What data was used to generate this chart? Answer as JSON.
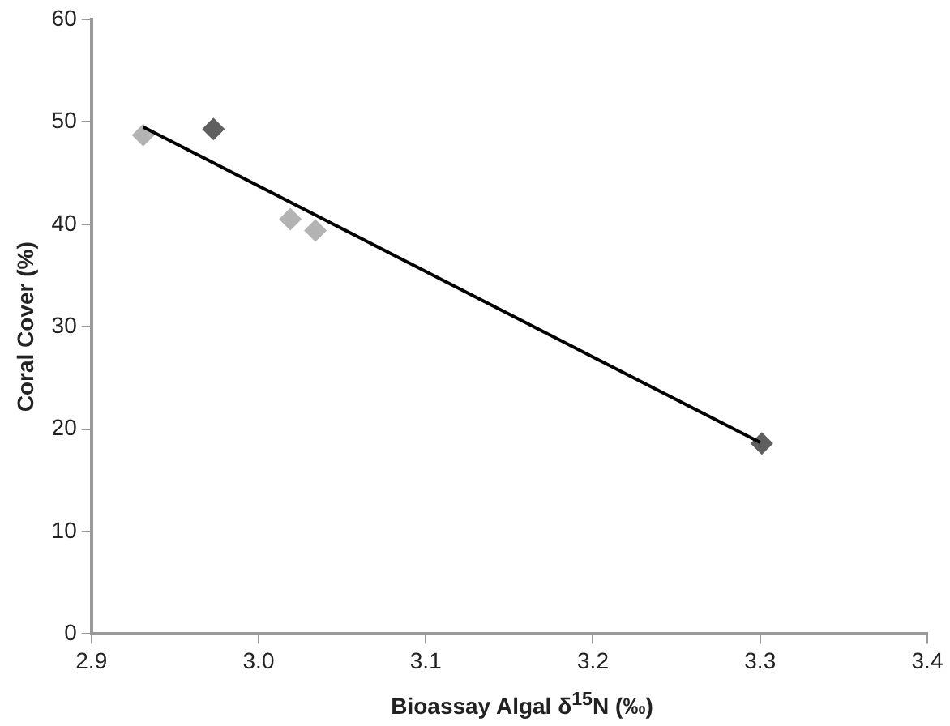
{
  "chart_data": {
    "type": "scatter",
    "xlabel": "Bioassay Algal δ$^{15}$N (‰)",
    "ylabel": "Coral Cover (%)",
    "xlim": [
      2.9,
      3.4
    ],
    "xticks": [
      {
        "value": 2.9,
        "label": "2.9"
      },
      {
        "value": 3.0,
        "label": "3.0"
      },
      3.1,
      3.2,
      3.3,
      3.4
    ],
    "ylim": [
      0,
      60
    ],
    "yticks": [
      0,
      10,
      20,
      30,
      40,
      50,
      60
    ],
    "marker": "diamond",
    "legend": false,
    "series": [
      {
        "color": "#b3b3b3",
        "x": [
          2.931,
          3.019,
          3.034
        ],
        "values": [
          48.7,
          40.5,
          39.4
        ]
      },
      {
        "color": "#5f5f5f",
        "x": [
          2.973,
          3.301
        ],
        "values": [
          49.3,
          18.6
        ]
      },
      {
        "type": "line",
        "color": "#000000",
        "marker": "none",
        "x": [
          2.931,
          3.3
        ],
        "values": [
          49.5,
          18.7
        ]
      }
    ]
  }
}
